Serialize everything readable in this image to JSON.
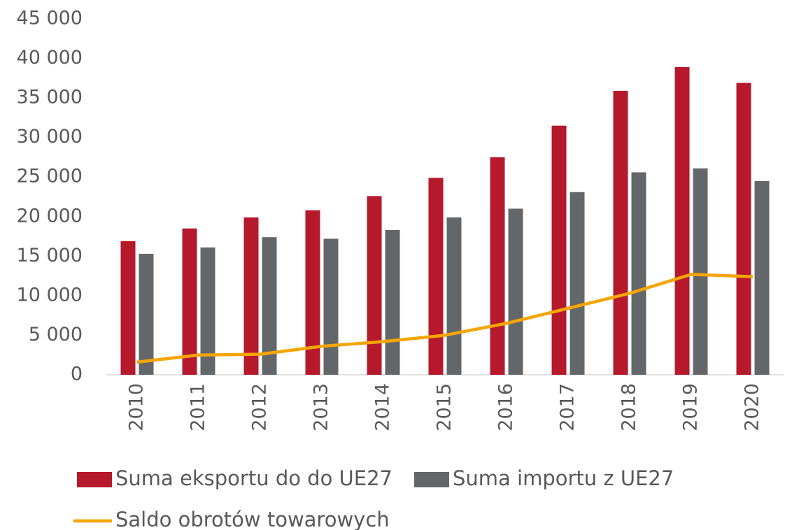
{
  "chart_data": {
    "type": "bar_line",
    "categories": [
      "2010",
      "2011",
      "2012",
      "2013",
      "2014",
      "2015",
      "2016",
      "2017",
      "2018",
      "2019",
      "2020"
    ],
    "series": [
      {
        "name": "Suma eksportu do do UE27",
        "color": "#b5192b",
        "type": "bar",
        "values": [
          16900,
          18500,
          19900,
          20800,
          22600,
          24900,
          27500,
          31500,
          35900,
          38900,
          36900
        ]
      },
      {
        "name": "Suma importu z UE27",
        "color": "#646769",
        "type": "bar",
        "values": [
          15300,
          16100,
          17400,
          17200,
          18300,
          19900,
          21000,
          23100,
          25600,
          26100,
          24500
        ]
      },
      {
        "name": "Saldo obrotów towarowych",
        "color": "#f5a500",
        "type": "line",
        "values": [
          1600,
          2500,
          2600,
          3600,
          4200,
          5000,
          6500,
          8400,
          10300,
          12700,
          12400
        ]
      }
    ],
    "ylim": [
      0,
      45000
    ],
    "yticks": [
      0,
      {
        "value": 5000,
        "label": "5 000"
      },
      {
        "value": 10000,
        "label": "10 000"
      },
      {
        "value": 15000,
        "label": "15 000"
      },
      {
        "value": 20000,
        "label": "20 000"
      },
      {
        "value": 25000,
        "label": "25 000"
      },
      {
        "value": 30000,
        "label": "30 000"
      },
      {
        "value": 35000,
        "label": "35 000"
      },
      {
        "value": 40000,
        "label": "40 000"
      },
      {
        "value": 45000,
        "label": "45 000"
      }
    ],
    "grid": false
  }
}
